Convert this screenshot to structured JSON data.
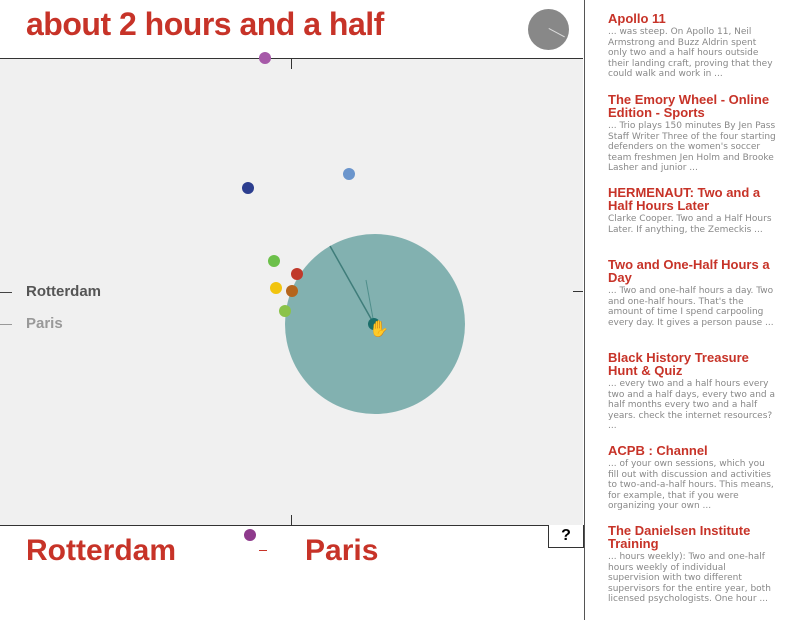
{
  "header": {
    "title": "about 2 hours and a half"
  },
  "plot": {
    "labels": {
      "from": "Rotterdam",
      "to": "Paris"
    },
    "colors": {
      "circle": "#6ea6a5",
      "accent": "#c73328"
    },
    "dots": [
      {
        "color": "#a659a8"
      },
      {
        "color": "#2c3e8f"
      },
      {
        "color": "#6b95cc"
      },
      {
        "color": "#6cc04a"
      },
      {
        "color": "#c0392b"
      },
      {
        "color": "#f1c40f"
      },
      {
        "color": "#b5651d"
      },
      {
        "color": "#8bc34a"
      },
      {
        "color": "#8e3a8c"
      }
    ]
  },
  "bottom": {
    "from": "Rotterdam",
    "to": "Paris",
    "help": "?"
  },
  "results": [
    {
      "title": "Apollo 11",
      "snippet": "... was steep. On Apollo 11, Neil Armstrong and Buzz Aldrin spent only two and a half hours outside their landing craft, proving that they could walk and work in ..."
    },
    {
      "title": "The Emory Wheel - Online Edition - Sports",
      "snippet": "... Trio plays 150 minutes By Jen Pass Staff Writer Three of the four starting defenders on the women's soccer team freshmen Jen Holm and Brooke Lasher and junior ..."
    },
    {
      "title": "HERMENAUT: Two and a Half Hours Later",
      "snippet": "Clarke Cooper. Two and a Half Hours Later. If anything, the Zemeckis ..."
    },
    {
      "title": "Two and One-Half Hours a Day",
      "snippet": "... Two and one-half hours a day. Two and one-half hours. That's the amount of time I spend carpooling every day. It gives a person pause ..."
    },
    {
      "title": "Black History Treasure Hunt & Quiz",
      "snippet": "... every two and a half hours every two and a half days, every two and a half months every two and a half years. check the internet resources? ..."
    },
    {
      "title": "ACPB : Channel",
      "snippet": "... of your own sessions, which you fill out with discussion and activities to two-and-a-half hours. This means, for example, that if you were organizing your own ..."
    },
    {
      "title": "The Danielsen Institute Training",
      "snippet": "... hours weekly): Two and one-half hours weekly of individual supervision with two different supervisors for the entire year, both licensed psychologists. One hour ..."
    }
  ]
}
